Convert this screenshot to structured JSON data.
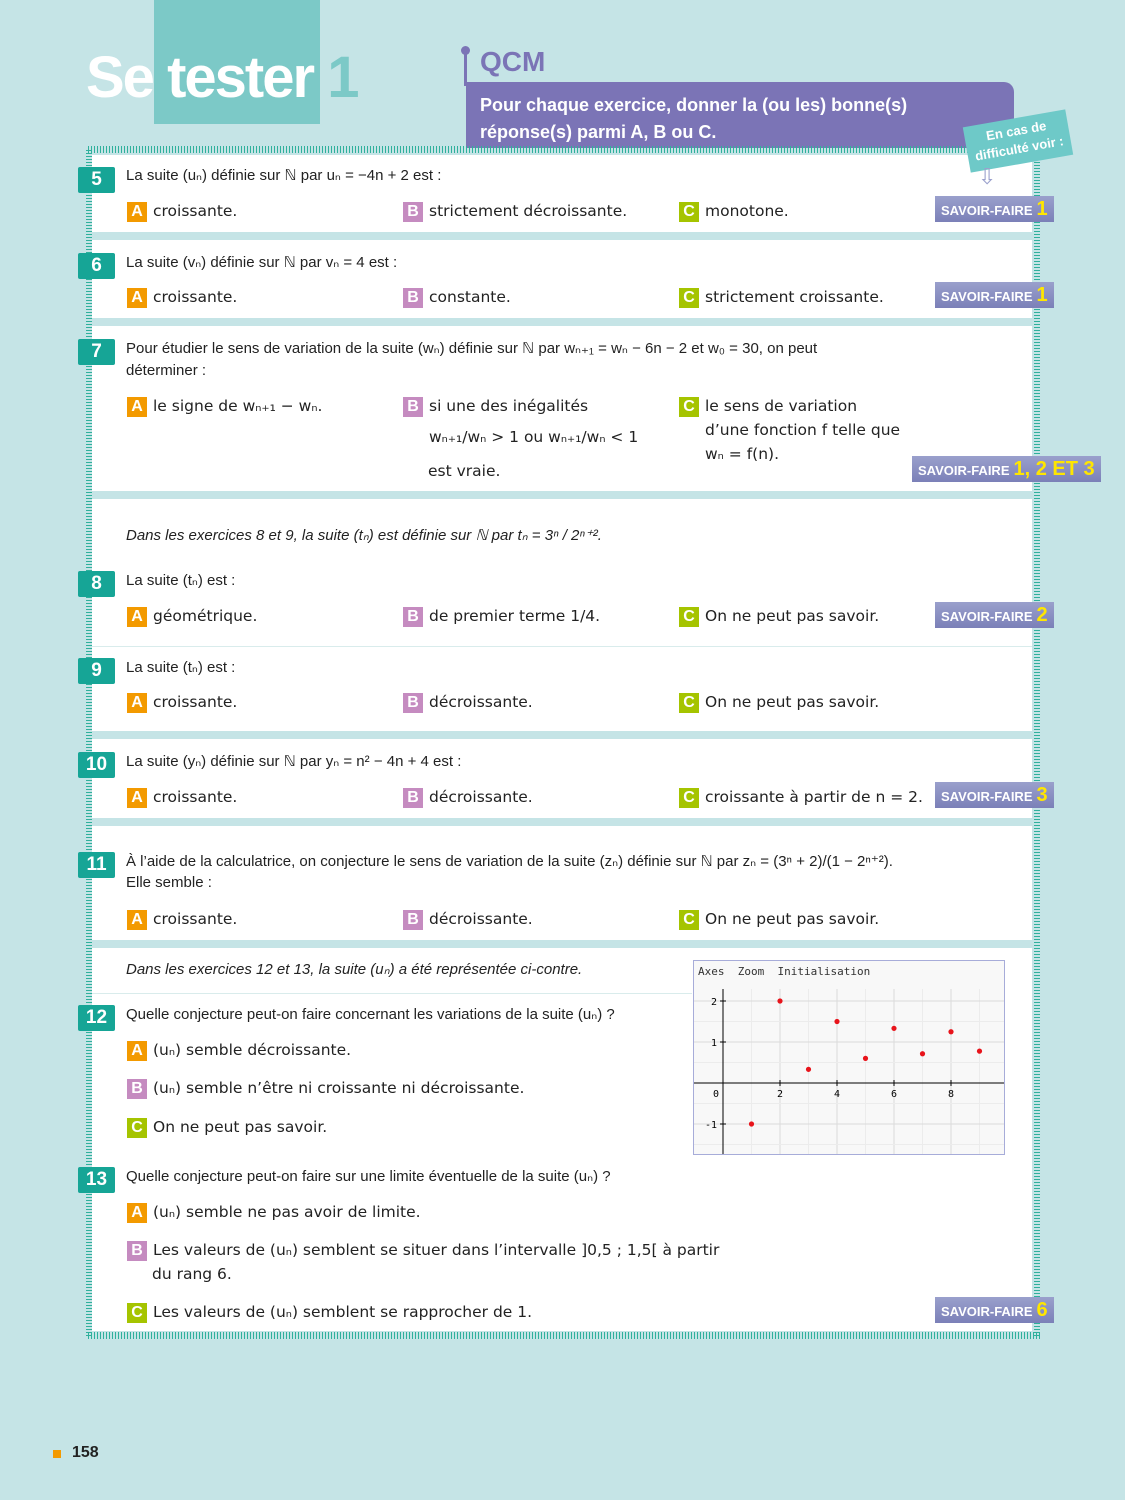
{
  "header": {
    "title_se": "Se",
    "title_tester": "tester",
    "title_num": "1",
    "qcm": "QCM",
    "instruction": "Pour chaque exercice, donner la (ou les) bonne(s) réponse(s) parmi A, B ou C.",
    "help": "En cas de difficulté voir :"
  },
  "colors": {
    "teal": "#16a596",
    "A": "#f39a00",
    "B": "#c58bc0",
    "C": "#a5c400",
    "purple": "#7b74b6"
  },
  "exercises": [
    {
      "num": "5",
      "q": "La suite (uₙ) définie sur ℕ par uₙ = −4n + 2 est :",
      "A": "croissante.",
      "B": "strictement décroissante.",
      "C": "monotone.",
      "sf_label": "SAVOIR-FAIRE",
      "sf": "1"
    },
    {
      "num": "6",
      "q": "La suite (vₙ) définie sur ℕ par vₙ = 4 est :",
      "A": "croissante.",
      "B": "constante.",
      "C": "strictement croissante.",
      "sf_label": "SAVOIR-FAIRE",
      "sf": "1"
    },
    {
      "num": "7",
      "q": "Pour étudier le sens de variation de la suite (wₙ) définie sur ℕ par wₙ₊₁ = wₙ − 6n − 2 et w₀ = 30, on peut",
      "q2": "déterminer :",
      "A": "le signe de wₙ₊₁ − wₙ.",
      "B": "si une des inégalités",
      "B2": "wₙ₊₁/wₙ > 1 ou wₙ₊₁/wₙ < 1",
      "B3": "est vraie.",
      "C": "le sens de variation",
      "C2": "d’une fonction f telle que",
      "C3": "wₙ = f(n).",
      "sf_label": "SAVOIR-FAIRE",
      "sf": "1, 2 ET 3"
    },
    {
      "intro": "Dans les exercices 8 et 9, la suite (tₙ) est définie sur ℕ par tₙ = 3ⁿ / 2ⁿ⁺²."
    },
    {
      "num": "8",
      "q": "La suite (tₙ) est :",
      "A": "géométrique.",
      "B": "de premier terme 1/4.",
      "C": "On ne peut pas savoir.",
      "sf_label": "SAVOIR-FAIRE",
      "sf": "2"
    },
    {
      "num": "9",
      "q": "La suite (tₙ) est :",
      "A": "croissante.",
      "B": "décroissante.",
      "C": "On ne peut pas savoir."
    },
    {
      "num": "10",
      "q": "La suite (yₙ) définie sur ℕ par yₙ = n² − 4n + 4 est :",
      "A": "croissante.",
      "B": "décroissante.",
      "C": "croissante à partir de n = 2.",
      "sf_label": "SAVOIR-FAIRE",
      "sf": "3"
    },
    {
      "num": "11",
      "q": "À l’aide de la calculatrice, on conjecture le sens de variation de la suite (zₙ) définie sur ℕ par zₙ = (3ⁿ + 2)/(1 − 2ⁿ⁺²).",
      "q2": "Elle semble :",
      "A": "croissante.",
      "B": "décroissante.",
      "C": "On ne peut pas savoir."
    },
    {
      "intro": "Dans les exercices 12 et 13, la suite (uₙ) a été représentée ci-contre."
    },
    {
      "num": "12",
      "q": "Quelle conjecture peut-on faire concernant les variations de la suite (uₙ) ?",
      "A": "(uₙ) semble décroissante.",
      "B": "(uₙ) semble n’être ni croissante ni décroissante.",
      "C": "On ne peut pas savoir."
    },
    {
      "num": "13",
      "q": "Quelle conjecture peut-on faire sur une limite éventuelle de la suite (uₙ) ?",
      "A": "(uₙ) semble ne pas avoir de limite.",
      "B": "Les valeurs de (uₙ) semblent se situer dans l’intervalle ]0,5 ; 1,5[ à partir",
      "B2": "du rang 6.",
      "C": "Les valeurs de (uₙ) semblent se rapprocher de 1.",
      "sf_label": "SAVOIR-FAIRE",
      "sf": "6"
    }
  ],
  "chart_data": {
    "type": "scatter",
    "menu": [
      "Axes",
      "Zoom",
      "Initialisation"
    ],
    "x": [
      1,
      2,
      3,
      4,
      5,
      6,
      7,
      8,
      9
    ],
    "y": [
      -1,
      2,
      0.333,
      1.5,
      0.6,
      1.333,
      0.714,
      1.25,
      0.778
    ],
    "xticks": [
      "0",
      "2",
      "4",
      "6",
      "8"
    ],
    "yticks": [
      "-1",
      "1",
      "2"
    ],
    "xlim": [
      0,
      10
    ],
    "ylim": [
      -1.7,
      2.4
    ],
    "grid": true,
    "color": "#e8141b"
  },
  "page_number": "158"
}
